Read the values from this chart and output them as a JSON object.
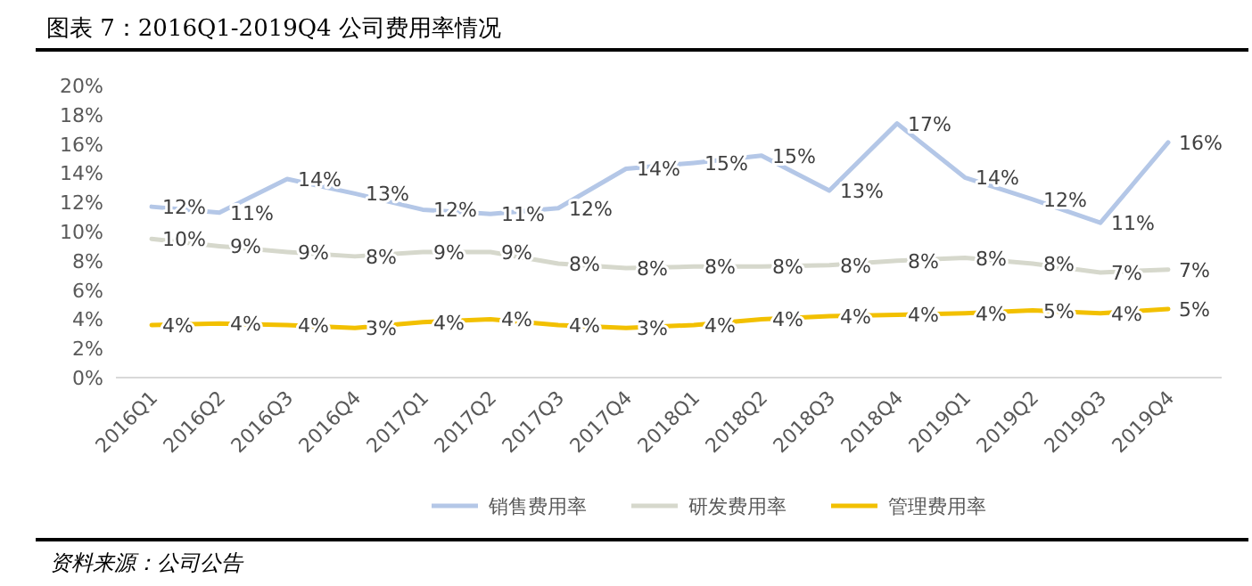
{
  "chart_data": {
    "type": "line",
    "title": "图表 7：2016Q1-2019Q4 公司费用率情况",
    "annotations": [
      "资料来源：公司公告"
    ],
    "categories": [
      "2016Q1",
      "2016Q2",
      "2016Q3",
      "2016Q4",
      "2017Q1",
      "2017Q2",
      "2017Q3",
      "2017Q4",
      "2018Q1",
      "2018Q2",
      "2018Q3",
      "2018Q4",
      "2019Q1",
      "2019Q2",
      "2019Q3",
      "2019Q4"
    ],
    "series": [
      {
        "name": "销售费用率",
        "color": "#b4c7e7",
        "values": [
          11.7,
          11.3,
          13.6,
          12.6,
          11.5,
          11.2,
          11.6,
          14.3,
          14.7,
          15.2,
          12.8,
          17.4,
          13.7,
          12.2,
          10.6,
          16.1
        ],
        "value_labels": [
          "12%",
          "11%",
          "14%",
          "13%",
          "12%",
          "11%",
          "12%",
          "14%",
          "15%",
          "15%",
          "13%",
          "17%",
          "14%",
          "12%",
          "11%",
          "16%"
        ]
      },
      {
        "name": "研发费用率",
        "color": "#d6d8cc",
        "values": [
          9.5,
          9.0,
          8.6,
          8.3,
          8.6,
          8.6,
          7.8,
          7.5,
          7.6,
          7.6,
          7.7,
          8.0,
          8.2,
          7.8,
          7.2,
          7.4
        ],
        "value_labels": [
          "10%",
          "9%",
          "9%",
          "8%",
          "9%",
          "9%",
          "8%",
          "8%",
          "8%",
          "8%",
          "8%",
          "8%",
          "8%",
          "8%",
          "7%",
          "7%"
        ]
      },
      {
        "name": "管理费用率",
        "color": "#f2c000",
        "values": [
          3.6,
          3.7,
          3.6,
          3.4,
          3.8,
          4.0,
          3.6,
          3.4,
          3.6,
          4.0,
          4.2,
          4.3,
          4.4,
          4.6,
          4.4,
          4.7
        ],
        "value_labels": [
          "4%",
          "4%",
          "4%",
          "3%",
          "4%",
          "4%",
          "4%",
          "3%",
          "4%",
          "4%",
          "4%",
          "4%",
          "4%",
          "5%",
          "4%",
          "5%"
        ]
      }
    ],
    "ylim": [
      0,
      20
    ],
    "yticks": [
      {
        "value": 0,
        "label": "0%"
      },
      {
        "value": 2,
        "label": "2%"
      },
      {
        "value": 4,
        "label": "4%"
      },
      {
        "value": 6,
        "label": "6%"
      },
      {
        "value": 8,
        "label": "8%"
      },
      {
        "value": 10,
        "label": "10%"
      },
      {
        "value": 12,
        "label": "12%"
      },
      {
        "value": 14,
        "label": "14%"
      },
      {
        "value": 16,
        "label": "16%"
      },
      {
        "value": 18,
        "label": "18%"
      },
      {
        "value": 20,
        "label": "20%"
      }
    ],
    "grid": false,
    "legend": "bottom",
    "marker": "none",
    "line_style": "solid"
  }
}
